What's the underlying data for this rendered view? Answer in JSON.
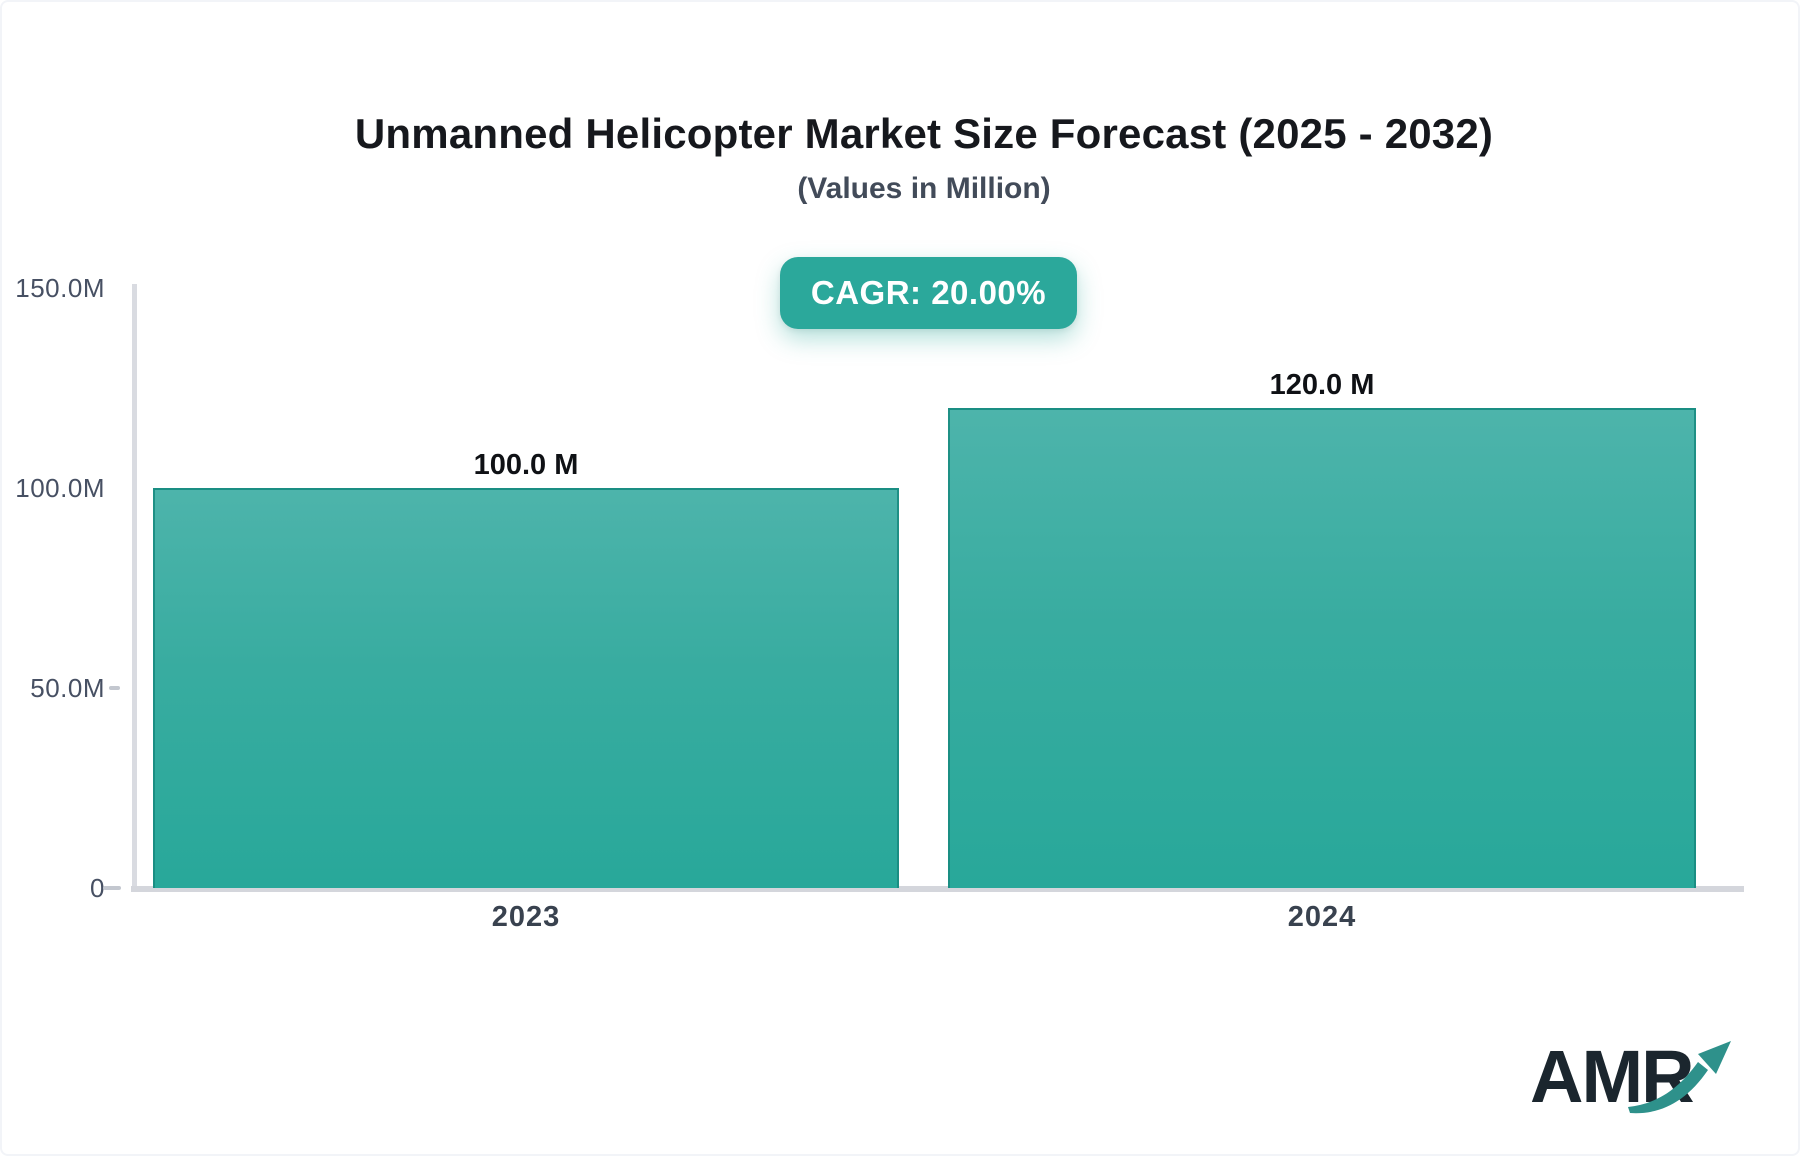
{
  "header": {
    "title": "Unmanned Helicopter Market Size Forecast (2025 - 2032)",
    "subtitle": "(Values in Million)"
  },
  "badge": {
    "label": "CAGR: 20.00%",
    "background_color": "#2ba89b",
    "text_color": "#ffffff"
  },
  "chart_data": {
    "type": "bar",
    "title": "Unmanned Helicopter Market Size Forecast (2025 - 2032)",
    "subtitle": "(Values in Million)",
    "cagr_label": "CAGR: 20.00%",
    "categories": [
      "2023",
      "2024"
    ],
    "values": [
      100.0,
      120.0
    ],
    "value_labels": [
      "100.0 M",
      "120.0 M"
    ],
    "ylim": [
      0,
      150
    ],
    "y_ticks": [
      {
        "label": "150.0M",
        "value": 150,
        "dash": false
      },
      {
        "label": "100.0M",
        "value": 100,
        "dash": false
      },
      {
        "label": "50.0M",
        "value": 50,
        "dash": true
      },
      {
        "label": "0",
        "value": 0,
        "dash": true
      }
    ],
    "grid": false,
    "legend": false,
    "bar_color_top": "#4db4ab",
    "bar_color_bottom": "#28a89a",
    "bar_border_color": "#18897f",
    "axis_color": "#d6d8de"
  },
  "logo": {
    "text": "AMR",
    "text_color": "#1b262e",
    "arrow_color": "#2e918b"
  }
}
